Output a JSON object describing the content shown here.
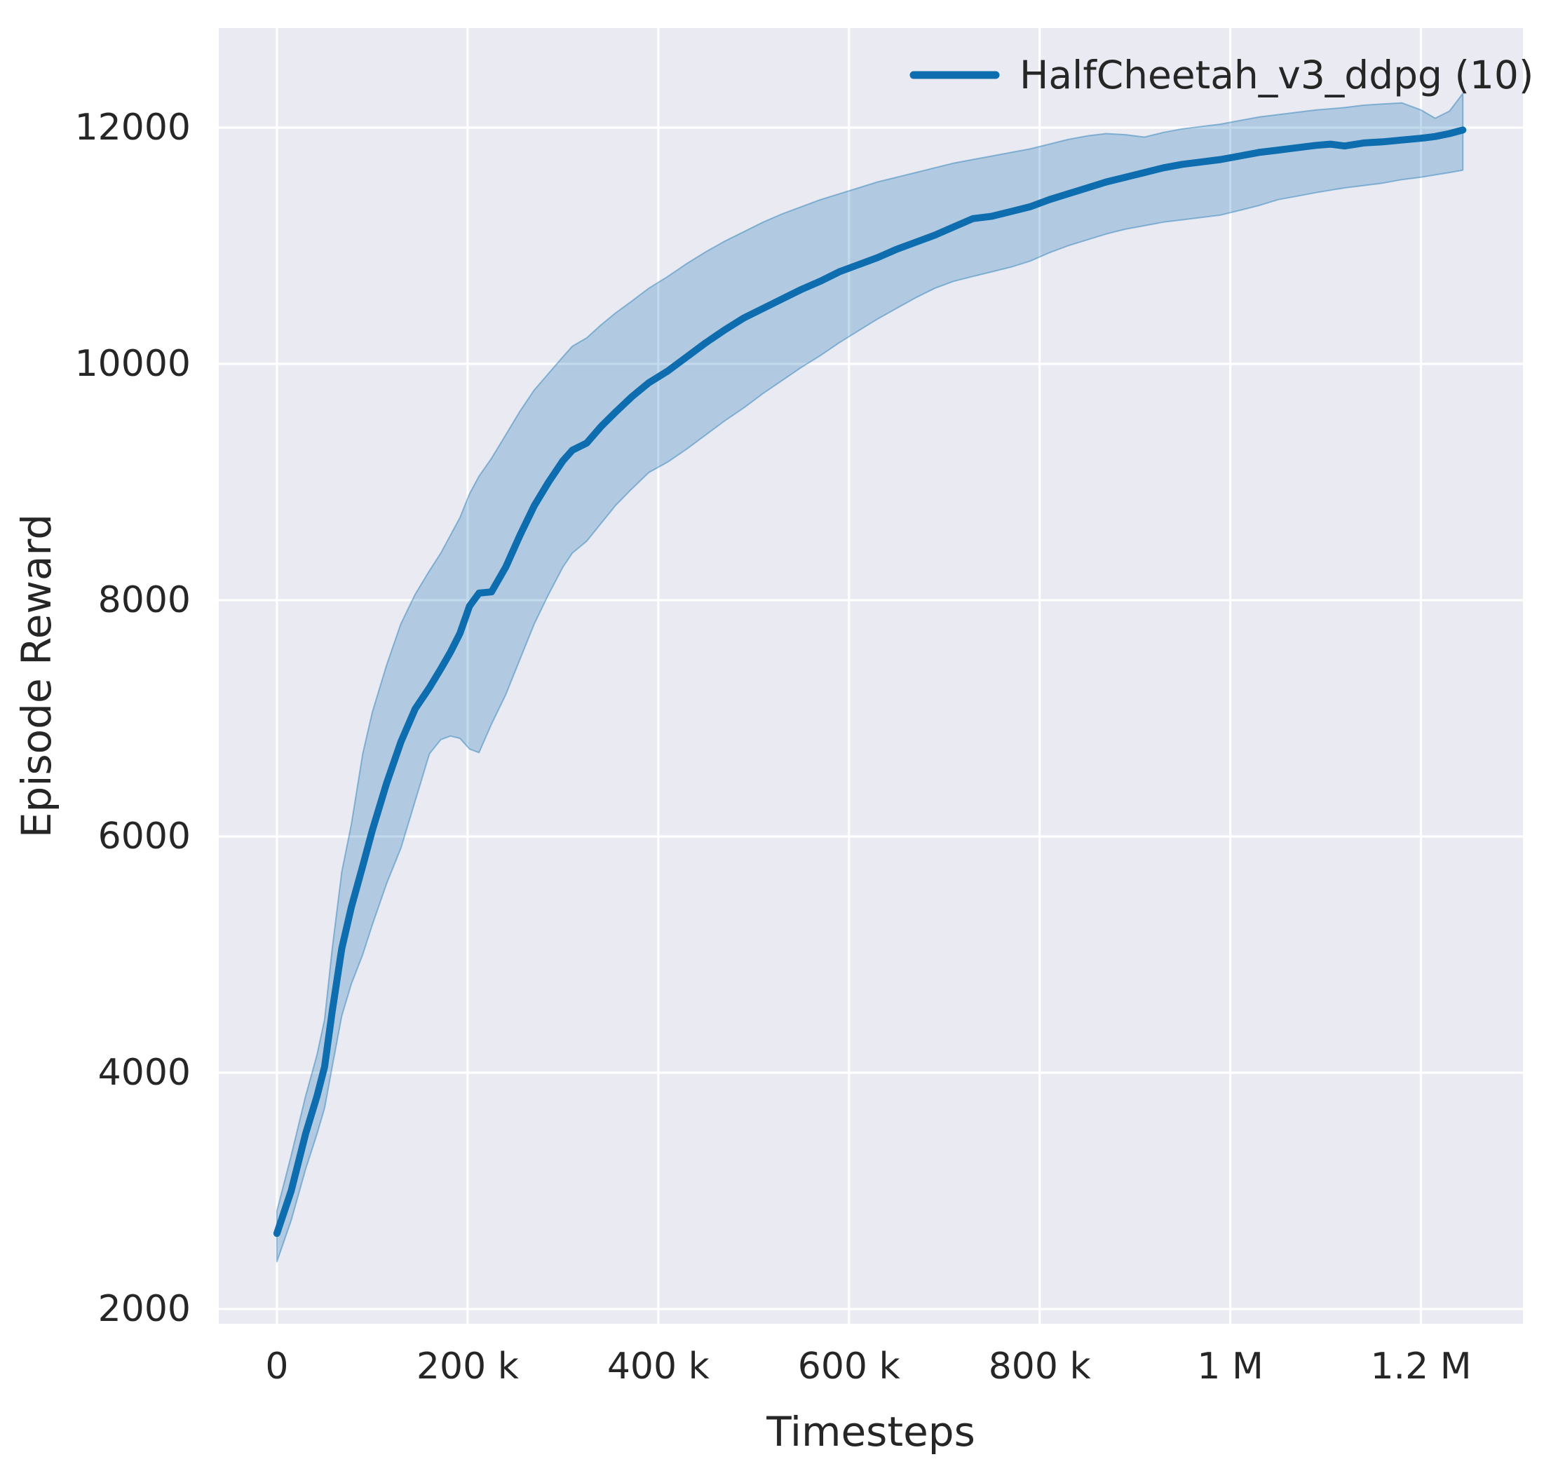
{
  "chart_data": {
    "type": "line",
    "title": "",
    "xlabel": "Timesteps",
    "ylabel": "Episode Reward",
    "legend_position": "upper right",
    "grid": true,
    "style": "seaborn-darkgrid",
    "xlim": [
      -61000,
      1307000
    ],
    "ylim": [
      1875,
      12843
    ],
    "xticks": [
      {
        "value": 0,
        "label": "0"
      },
      {
        "value": 200000,
        "label": "200 k"
      },
      {
        "value": 400000,
        "label": "400 k"
      },
      {
        "value": 600000,
        "label": "600 k"
      },
      {
        "value": 800000,
        "label": "800 k"
      },
      {
        "value": 1000000,
        "label": "1 M"
      },
      {
        "value": 1200000,
        "label": "1.2 M"
      }
    ],
    "yticks": [
      {
        "value": 2000,
        "label": "2000"
      },
      {
        "value": 4000,
        "label": "4000"
      },
      {
        "value": 6000,
        "label": "6000"
      },
      {
        "value": 8000,
        "label": "8000"
      },
      {
        "value": 10000,
        "label": "10000"
      },
      {
        "value": 12000,
        "label": "12000"
      }
    ],
    "series": [
      {
        "name": "HalfCheetah_v3_ddpg (10)",
        "x": [
          0,
          15000,
          30000,
          42000,
          50000,
          58000,
          68000,
          78000,
          90000,
          100000,
          115000,
          130000,
          145000,
          160000,
          172000,
          182000,
          192000,
          202000,
          212000,
          225000,
          240000,
          255000,
          270000,
          285000,
          300000,
          310000,
          325000,
          340000,
          355000,
          372000,
          390000,
          410000,
          430000,
          450000,
          470000,
          490000,
          510000,
          530000,
          550000,
          570000,
          590000,
          610000,
          630000,
          650000,
          670000,
          690000,
          710000,
          730000,
          750000,
          770000,
          790000,
          810000,
          830000,
          850000,
          870000,
          890000,
          910000,
          930000,
          950000,
          970000,
          990000,
          1010000,
          1030000,
          1050000,
          1070000,
          1090000,
          1105000,
          1120000,
          1140000,
          1160000,
          1180000,
          1200000,
          1215000,
          1230000,
          1244000
        ],
        "mean": [
          2640,
          3000,
          3480,
          3800,
          4050,
          4520,
          5050,
          5400,
          5750,
          6050,
          6450,
          6800,
          7080,
          7260,
          7420,
          7560,
          7720,
          7950,
          8060,
          8070,
          8280,
          8550,
          8800,
          9000,
          9180,
          9270,
          9330,
          9470,
          9590,
          9720,
          9840,
          9940,
          10060,
          10180,
          10290,
          10390,
          10470,
          10550,
          10630,
          10700,
          10780,
          10840,
          10900,
          10970,
          11030,
          11090,
          11160,
          11230,
          11250,
          11290,
          11330,
          11390,
          11440,
          11490,
          11540,
          11580,
          11620,
          11660,
          11690,
          11710,
          11730,
          11760,
          11790,
          11810,
          11830,
          11850,
          11860,
          11845,
          11870,
          11880,
          11895,
          11910,
          11925,
          11950,
          11980
        ],
        "band_lower": [
          2400,
          2750,
          3180,
          3480,
          3700,
          4050,
          4480,
          4750,
          5000,
          5250,
          5600,
          5900,
          6300,
          6700,
          6820,
          6850,
          6830,
          6740,
          6710,
          6950,
          7200,
          7500,
          7800,
          8050,
          8280,
          8400,
          8500,
          8650,
          8800,
          8940,
          9080,
          9170,
          9280,
          9400,
          9520,
          9630,
          9750,
          9860,
          9970,
          10070,
          10180,
          10280,
          10380,
          10470,
          10560,
          10640,
          10700,
          10740,
          10780,
          10820,
          10870,
          10940,
          11000,
          11050,
          11100,
          11140,
          11170,
          11200,
          11220,
          11240,
          11260,
          11300,
          11340,
          11390,
          11420,
          11450,
          11470,
          11490,
          11510,
          11530,
          11560,
          11580,
          11600,
          11620,
          11640
        ],
        "band_upper": [
          2830,
          3300,
          3800,
          4150,
          4450,
          5050,
          5700,
          6100,
          6700,
          7050,
          7450,
          7800,
          8050,
          8250,
          8400,
          8550,
          8700,
          8900,
          9050,
          9200,
          9400,
          9600,
          9780,
          9920,
          10060,
          10150,
          10220,
          10330,
          10430,
          10530,
          10640,
          10740,
          10850,
          10950,
          11040,
          11120,
          11200,
          11270,
          11330,
          11390,
          11440,
          11490,
          11540,
          11580,
          11620,
          11660,
          11700,
          11730,
          11760,
          11790,
          11820,
          11860,
          11900,
          11930,
          11950,
          11940,
          11920,
          11960,
          11990,
          12010,
          12030,
          12060,
          12090,
          12110,
          12130,
          12150,
          12160,
          12170,
          12190,
          12200,
          12210,
          12150,
          12080,
          12140,
          12290
        ]
      }
    ],
    "colors": {
      "line": "#0d6dae",
      "band_fill": "rgba(13,109,174,0.25)",
      "band_edge": "rgba(13,109,174,0.40)",
      "plot_background": "#eaeaf2",
      "gridline": "#ffffff",
      "figure_background": "#ffffff",
      "text": "#262626"
    }
  }
}
